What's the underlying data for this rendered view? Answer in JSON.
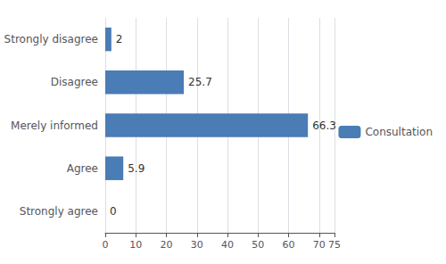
{
  "chart_data": {
    "type": "bar",
    "orientation": "horizontal",
    "categories": [
      "Strongly disagree",
      "Disagree",
      "Merely informed",
      "Agree",
      "Strongly agree"
    ],
    "series": [
      {
        "name": "Consultation",
        "color": "#4a7cb5",
        "values": [
          2,
          25.7,
          66.3,
          5.9,
          0
        ]
      }
    ],
    "xlim": [
      0,
      75
    ],
    "xticks": [
      0,
      10,
      20,
      30,
      40,
      50,
      60,
      70
    ],
    "grid": true,
    "data_labels": true,
    "legend": "right"
  }
}
